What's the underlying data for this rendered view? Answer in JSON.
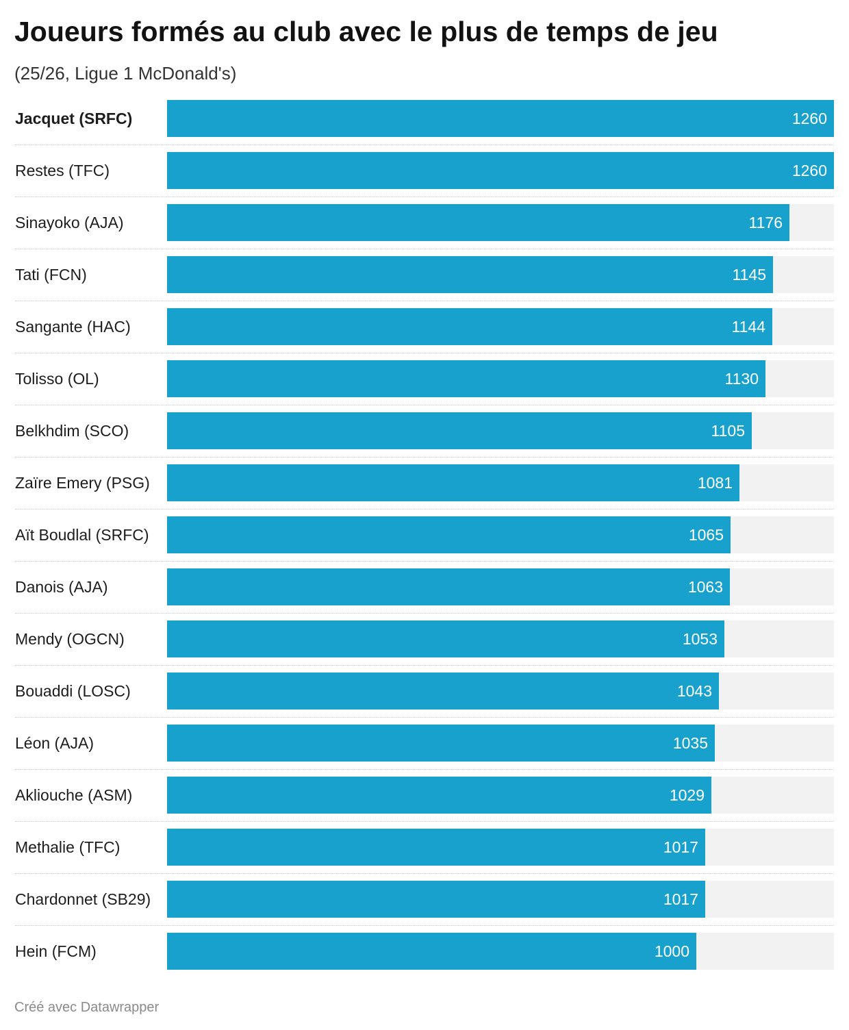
{
  "chart_data": {
    "type": "bar",
    "orientation": "horizontal",
    "title": "Joueurs formés au club avec le plus de temps de jeu",
    "subtitle": "(25/26, Ligue 1 McDonald's)",
    "highlighted": "Jacquet (SRFC)",
    "categories": [
      "Jacquet (SRFC)",
      "Restes (TFC)",
      "Sinayoko (AJA)",
      "Tati (FCN)",
      "Sangante (HAC)",
      "Tolisso (OL)",
      "Belkhdim (SCO)",
      "Zaïre Emery (PSG)",
      "Aït Boudlal (SRFC)",
      "Danois (AJA)",
      "Mendy (OGCN)",
      "Bouaddi (LOSC)",
      "Léon (AJA)",
      "Akliouche (ASM)",
      "Methalie (TFC)",
      "Chardonnet (SB29)",
      "Hein (FCM)"
    ],
    "values": [
      1260,
      1260,
      1176,
      1145,
      1144,
      1130,
      1105,
      1081,
      1065,
      1063,
      1053,
      1043,
      1035,
      1029,
      1017,
      1017,
      1000
    ],
    "xlim": [
      0,
      1260
    ],
    "colors": {
      "bar": "#18a1cd",
      "track": "#f2f2f2",
      "value_text": "#ffffff"
    }
  },
  "footer": "Créé avec Datawrapper"
}
